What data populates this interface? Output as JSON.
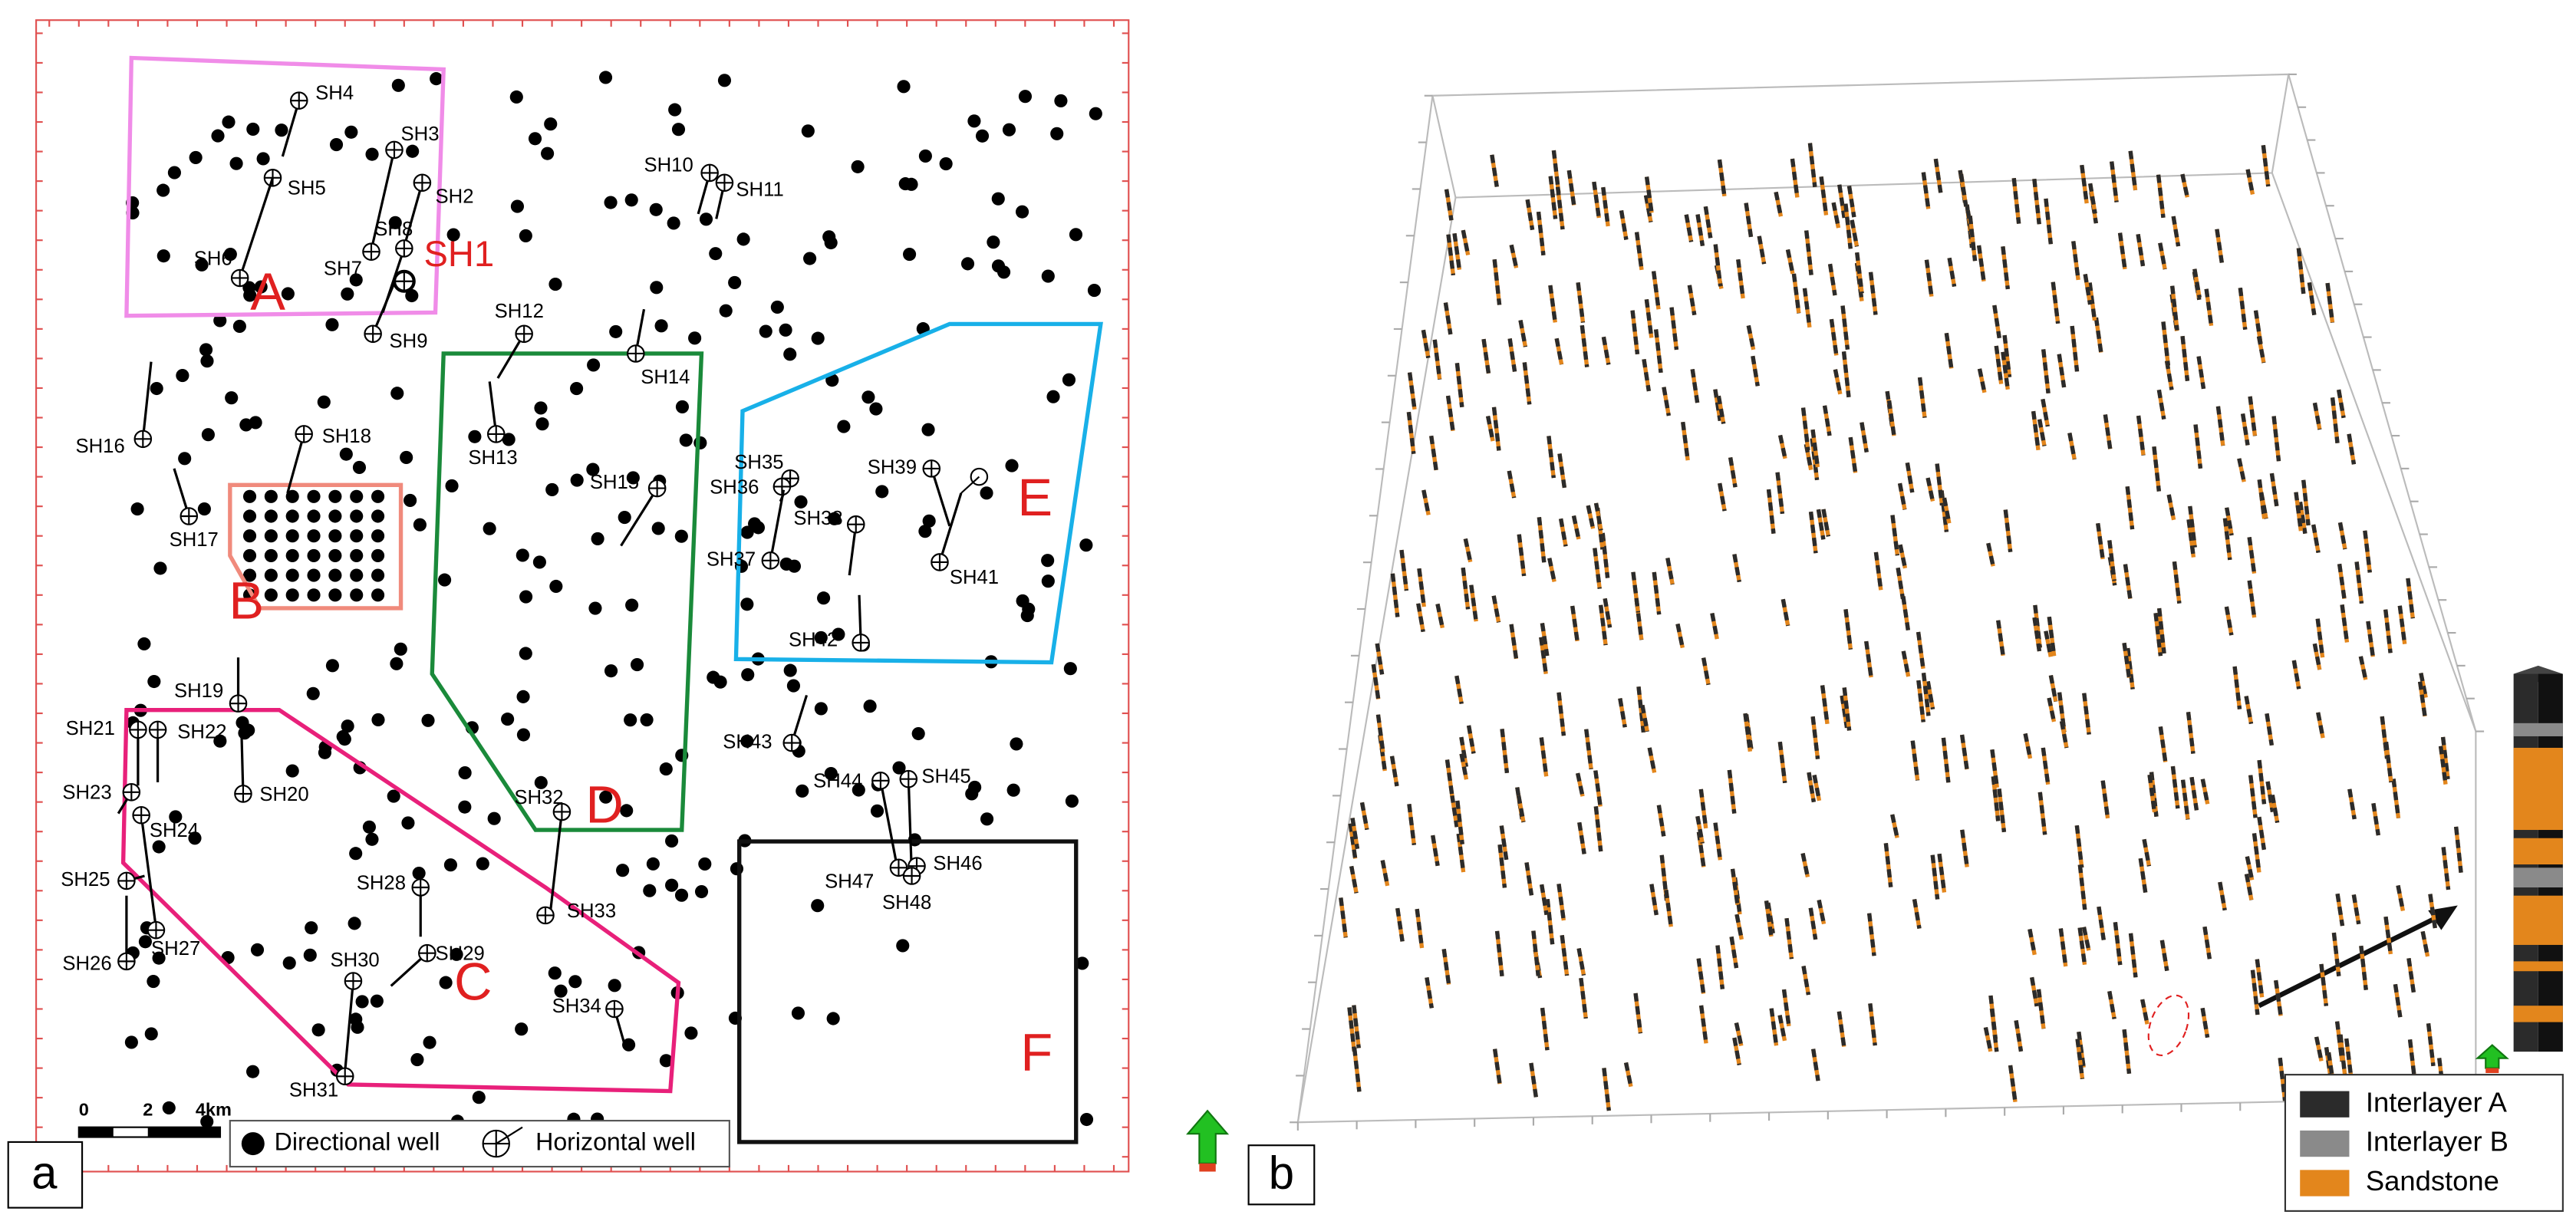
{
  "panel_a": {
    "label": "a",
    "regions": [
      {
        "label": "A",
        "color": "#f08ce8"
      },
      {
        "label": "B",
        "color": "#f08a7c"
      },
      {
        "label": "C",
        "color": "#e8207a"
      },
      {
        "label": "D",
        "color": "#1a8a3a"
      },
      {
        "label": "E",
        "color": "#18b0e8"
      },
      {
        "label": "F",
        "color": "#111111"
      }
    ],
    "wells": [
      "SH1",
      "SH2",
      "SH3",
      "SH4",
      "SH5",
      "SH6",
      "SH7",
      "SH8",
      "SH9",
      "SH10",
      "SH11",
      "SH12",
      "SH13",
      "SH14",
      "SH15",
      "SH16",
      "SH17",
      "SH18",
      "SH19",
      "SH20",
      "SH21",
      "SH22",
      "SH23",
      "SH24",
      "SH25",
      "SH26",
      "SH27",
      "SH28",
      "SH29",
      "SH30",
      "SH31",
      "SH32",
      "SH33",
      "SH34",
      "SH35",
      "SH36",
      "SH37",
      "SH38",
      "SH39",
      "SH41",
      "SH42",
      "SH43",
      "SH44",
      "SH45",
      "SH46",
      "SH47",
      "SH48"
    ],
    "scale_bar": [
      "0",
      "2",
      "4km"
    ],
    "legend": [
      "Directional well",
      "Horizontal well"
    ]
  },
  "panel_b": {
    "label": "b",
    "legend": [
      {
        "label": "Interlayer A",
        "color": "#2b2b2b"
      },
      {
        "label": "Interlayer B",
        "color": "#8a8a8a"
      },
      {
        "label": "Sandstone",
        "color": "#e3861c"
      }
    ]
  }
}
